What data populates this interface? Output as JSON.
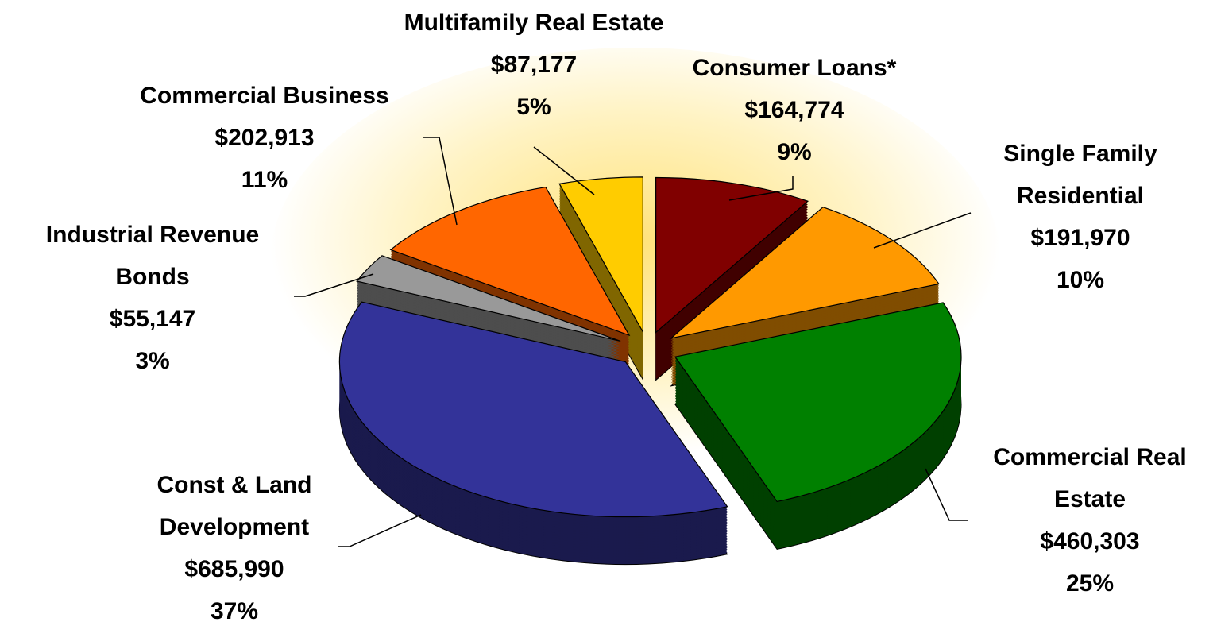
{
  "chart_data": {
    "type": "pie3d",
    "categories": [
      "Consumer Loans*",
      "Single Family Residential",
      "Commercial Real Estate",
      "Const & Land Development",
      "Industrial Revenue Bonds",
      "Commercial Business",
      "Multifamily Real Estate"
    ],
    "values": [
      164774,
      191970,
      460303,
      685990,
      55147,
      202913,
      87177
    ],
    "value_labels": [
      "$164,774",
      "$191,970",
      "$460,303",
      "$685,990",
      "$55,147",
      "$202,913",
      "$87,177"
    ],
    "percentages": [
      9,
      10,
      25,
      37,
      3,
      11,
      5
    ],
    "percentage_labels": [
      "9%",
      "10%",
      "25%",
      "37%",
      "3%",
      "11%",
      "5%"
    ],
    "colors": [
      "#800000",
      "#ff9900",
      "#008000",
      "#333399",
      "#999999",
      "#ff6600",
      "#ffcc00"
    ]
  }
}
